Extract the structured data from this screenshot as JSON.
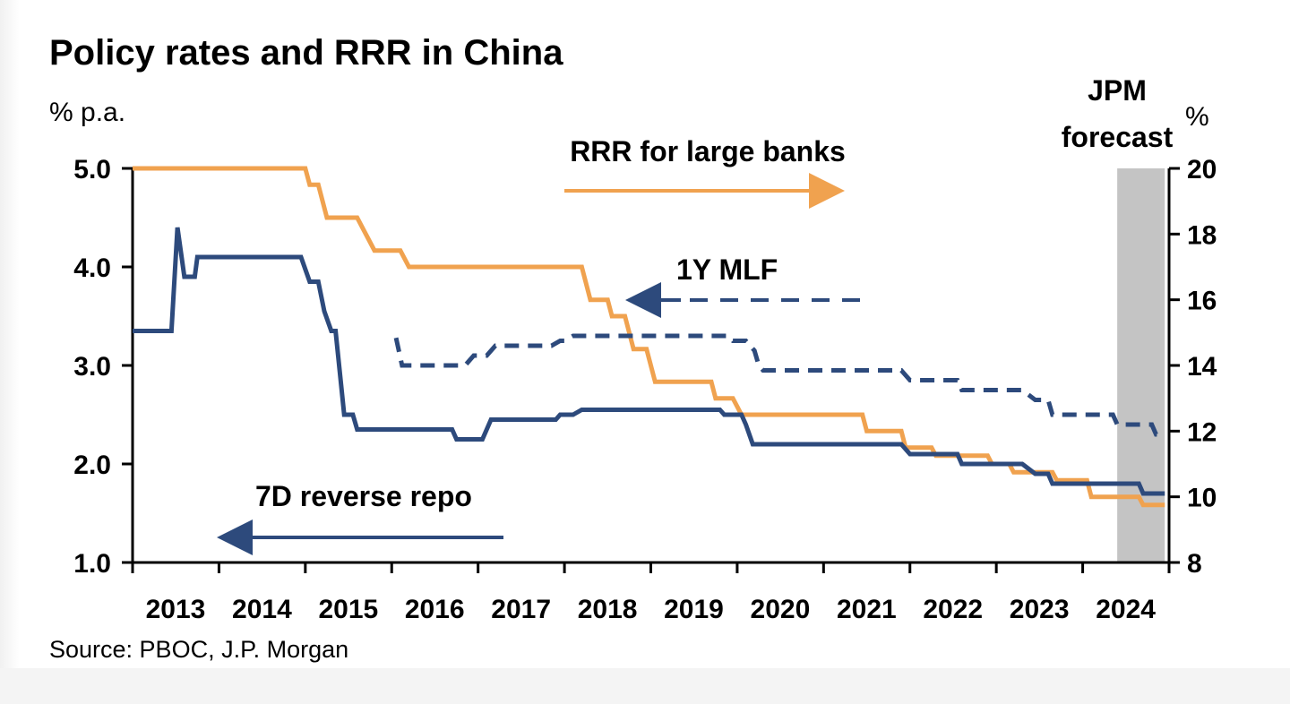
{
  "chart_data": {
    "type": "line",
    "title": "Policy rates and RRR in China",
    "y_left_label": "% p.a.",
    "y_right_label": "%",
    "source": "Source: PBOC, J.P. Morgan",
    "x_range": [
      2013.0,
      2025.0
    ],
    "y_left_range": [
      1.0,
      5.0
    ],
    "y_right_range": [
      8,
      20
    ],
    "x_ticks": [
      "2013",
      "2014",
      "2015",
      "2016",
      "2017",
      "2018",
      "2019",
      "2020",
      "2021",
      "2022",
      "2023",
      "2024"
    ],
    "y_left_ticks": [
      "1.0",
      "2.0",
      "3.0",
      "4.0",
      "5.0"
    ],
    "y_right_ticks": [
      "8",
      "10",
      "12",
      "14",
      "16",
      "18",
      "20"
    ],
    "forecast_band": {
      "label_line1": "JPM",
      "label_line2": "forecast",
      "x_start": 2024.4,
      "x_end": 2024.95
    },
    "colors": {
      "navy": "#2d4a7c",
      "orange": "#f0a24f",
      "forecast": "#c4c4c4"
    },
    "annotations": {
      "rrr": "RRR for large banks",
      "mlf": "1Y MLF",
      "repo": "7D reverse repo"
    },
    "series": [
      {
        "name": "RRR for large banks",
        "axis": "right",
        "style": "solid",
        "color": "#f0a24f",
        "points": [
          [
            2013.0,
            20
          ],
          [
            2015.0,
            20
          ],
          [
            2015.05,
            19.5
          ],
          [
            2015.15,
            19.5
          ],
          [
            2015.25,
            18.5
          ],
          [
            2015.6,
            18.5
          ],
          [
            2015.8,
            17.5
          ],
          [
            2016.1,
            17.5
          ],
          [
            2016.2,
            17
          ],
          [
            2018.2,
            17
          ],
          [
            2018.3,
            16
          ],
          [
            2018.5,
            16
          ],
          [
            2018.55,
            15.5
          ],
          [
            2018.7,
            15.5
          ],
          [
            2018.8,
            14.5
          ],
          [
            2018.95,
            14.5
          ],
          [
            2019.05,
            13.5
          ],
          [
            2019.7,
            13.5
          ],
          [
            2019.75,
            13
          ],
          [
            2019.95,
            13
          ],
          [
            2020.05,
            12.5
          ],
          [
            2021.45,
            12.5
          ],
          [
            2021.5,
            12
          ],
          [
            2021.9,
            12
          ],
          [
            2021.95,
            11.5
          ],
          [
            2022.25,
            11.5
          ],
          [
            2022.3,
            11.25
          ],
          [
            2022.9,
            11.25
          ],
          [
            2022.95,
            11
          ],
          [
            2023.15,
            11
          ],
          [
            2023.2,
            10.75
          ],
          [
            2023.65,
            10.75
          ],
          [
            2023.7,
            10.5
          ],
          [
            2024.05,
            10.5
          ],
          [
            2024.1,
            10
          ],
          [
            2024.65,
            10
          ],
          [
            2024.7,
            9.75
          ],
          [
            2024.95,
            9.75
          ]
        ]
      },
      {
        "name": "7D reverse repo",
        "axis": "left",
        "style": "solid",
        "color": "#2d4a7c",
        "points": [
          [
            2013.0,
            3.35
          ],
          [
            2013.45,
            3.35
          ],
          [
            2013.52,
            4.4
          ],
          [
            2013.6,
            3.9
          ],
          [
            2013.72,
            3.9
          ],
          [
            2013.75,
            4.1
          ],
          [
            2014.95,
            4.1
          ],
          [
            2015.05,
            3.85
          ],
          [
            2015.15,
            3.85
          ],
          [
            2015.22,
            3.55
          ],
          [
            2015.3,
            3.35
          ],
          [
            2015.35,
            3.35
          ],
          [
            2015.45,
            2.5
          ],
          [
            2015.55,
            2.5
          ],
          [
            2015.6,
            2.35
          ],
          [
            2016.7,
            2.35
          ],
          [
            2016.75,
            2.25
          ],
          [
            2017.05,
            2.25
          ],
          [
            2017.15,
            2.45
          ],
          [
            2017.9,
            2.45
          ],
          [
            2017.95,
            2.5
          ],
          [
            2018.1,
            2.5
          ],
          [
            2018.2,
            2.55
          ],
          [
            2019.8,
            2.55
          ],
          [
            2019.85,
            2.5
          ],
          [
            2020.05,
            2.5
          ],
          [
            2020.1,
            2.4
          ],
          [
            2020.18,
            2.2
          ],
          [
            2021.9,
            2.2
          ],
          [
            2022.0,
            2.1
          ],
          [
            2022.55,
            2.1
          ],
          [
            2022.6,
            2.0
          ],
          [
            2023.3,
            2.0
          ],
          [
            2023.45,
            1.9
          ],
          [
            2023.6,
            1.9
          ],
          [
            2023.65,
            1.8
          ],
          [
            2024.65,
            1.8
          ],
          [
            2024.7,
            1.7
          ],
          [
            2024.95,
            1.7
          ]
        ]
      },
      {
        "name": "1Y MLF",
        "axis": "left",
        "style": "dashed",
        "color": "#2d4a7c",
        "points": [
          [
            2016.05,
            3.28
          ],
          [
            2016.12,
            3.0
          ],
          [
            2016.85,
            3.0
          ],
          [
            2016.95,
            3.1
          ],
          [
            2017.1,
            3.1
          ],
          [
            2017.2,
            3.2
          ],
          [
            2017.85,
            3.2
          ],
          [
            2017.95,
            3.25
          ],
          [
            2018.0,
            3.25
          ],
          [
            2018.1,
            3.3
          ],
          [
            2019.9,
            3.3
          ],
          [
            2019.95,
            3.25
          ],
          [
            2020.1,
            3.25
          ],
          [
            2020.2,
            3.15
          ],
          [
            2020.25,
            3.0
          ],
          [
            2020.3,
            2.95
          ],
          [
            2021.9,
            2.95
          ],
          [
            2022.0,
            2.85
          ],
          [
            2022.55,
            2.85
          ],
          [
            2022.6,
            2.75
          ],
          [
            2023.3,
            2.75
          ],
          [
            2023.45,
            2.65
          ],
          [
            2023.6,
            2.65
          ],
          [
            2023.65,
            2.5
          ],
          [
            2024.35,
            2.5
          ],
          [
            2024.4,
            2.4
          ],
          [
            2024.8,
            2.4
          ],
          [
            2024.85,
            2.3
          ],
          [
            2024.95,
            2.3
          ]
        ]
      }
    ],
    "legend": "none (inline arrow labels)",
    "grid": false
  }
}
